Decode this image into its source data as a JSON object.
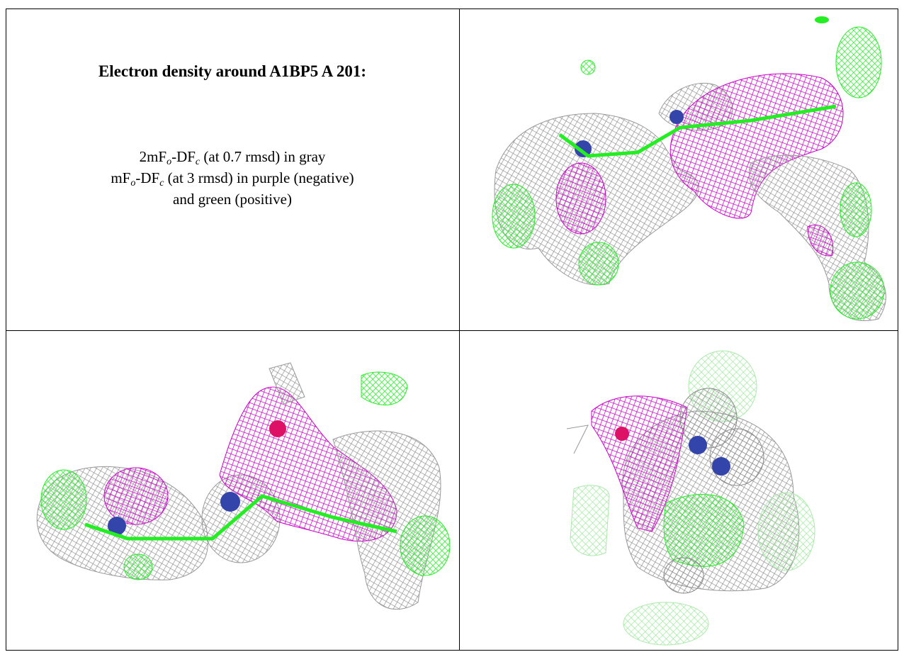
{
  "heading": "Electron density around A1BP5 A 201:",
  "legend": {
    "line1": [
      "2mF",
      "o",
      "-DF",
      "c",
      " (at 0.7 rmsd) in gray"
    ],
    "line2": [
      "mF",
      "o",
      "-DF",
      "c",
      " (at 3 rmsd) in purple (negative)"
    ],
    "line3": "and green (positive)"
  }
}
